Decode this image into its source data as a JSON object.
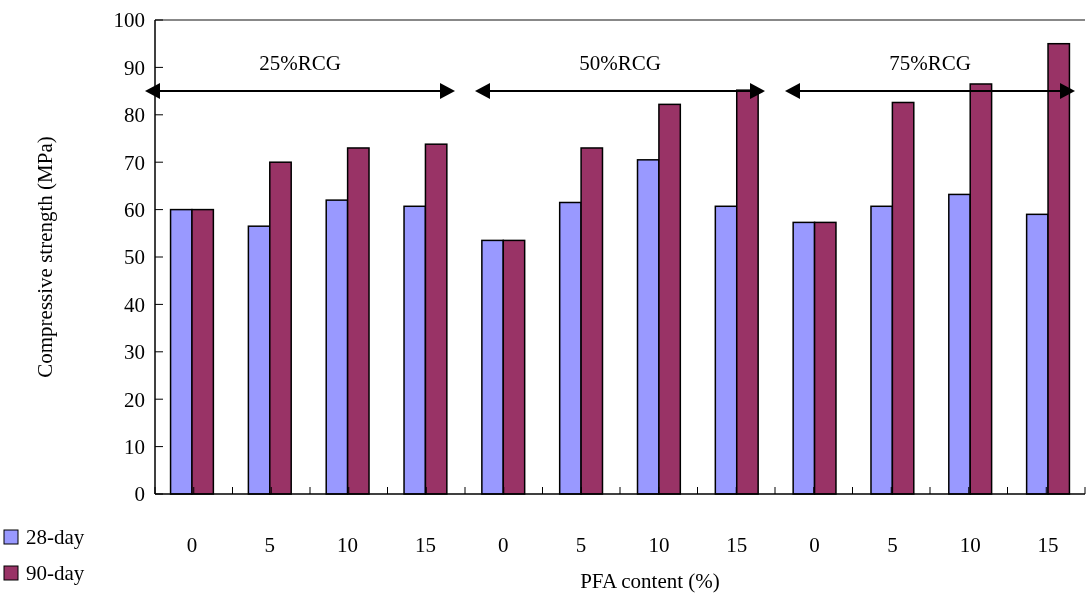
{
  "chart_data": {
    "type": "bar",
    "xlabel": "PFA content (%)",
    "ylabel": "Compressive strength (MPa)",
    "categories": [
      "0",
      "5",
      "10",
      "15",
      "0",
      "5",
      "10",
      "15",
      "0",
      "5",
      "10",
      "15"
    ],
    "series": [
      {
        "name": "28-day",
        "color": "#9999ff",
        "values": [
          60,
          56.5,
          62,
          60.7,
          53.5,
          61.5,
          70.5,
          60.7,
          57.3,
          60.7,
          63.2,
          59
        ]
      },
      {
        "name": "90-day",
        "color": "#993366",
        "values": [
          60,
          70,
          73,
          73.8,
          53.5,
          73,
          82.2,
          85.2,
          57.3,
          82.6,
          86.5,
          95
        ]
      }
    ],
    "ylim": [
      0,
      100
    ],
    "yticks": [
      0,
      10,
      20,
      30,
      40,
      50,
      60,
      70,
      80,
      90,
      100
    ],
    "grid": false,
    "legend": "bottom left",
    "annotations": [
      "25%RCG",
      "50%RCG",
      "75%RCG"
    ]
  }
}
